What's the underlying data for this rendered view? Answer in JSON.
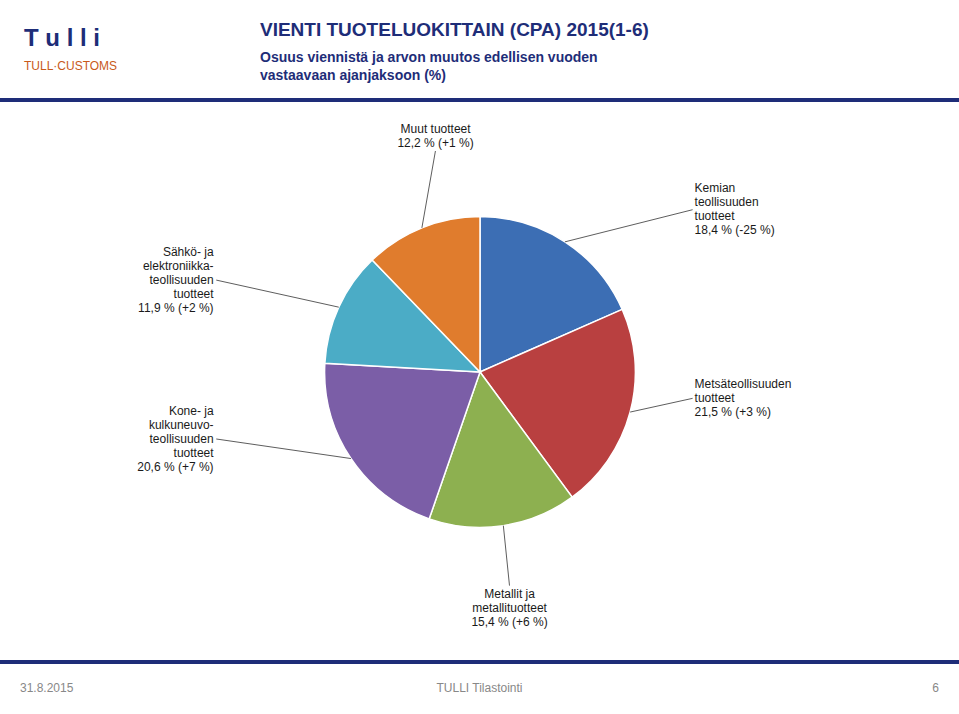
{
  "chart_data": {
    "type": "pie",
    "title": "VIENTI TUOTELUOKITTAIN (CPA) 2015(1-6)",
    "subtitle": "Osuus viennistä ja arvon muutos edellisen vuoden\nvastaavaan ajanjaksoon (%)",
    "categories": [
      "Kemian\nteollisuuden\ntuotteet\n18,4 % (-25 %)",
      "Metsäteollisuuden\ntuotteet\n21,5 % (+3 %)",
      "Metallit ja\nmetallituotteet\n15,4 % (+6 %)",
      "Kone- ja\nkulkuneuvo-\nteollisuuden\ntuotteet\n20,6 % (+7 %)",
      "Sähkö- ja\nelektroniikka-\nteollisuuden\ntuotteet\n11,9 % (+2 %)",
      "Muut tuotteet\n12,2 % (+1 %)"
    ],
    "values": [
      18.4,
      21.5,
      15.4,
      20.6,
      11.9,
      12.2
    ],
    "colors": [
      "#3C6EB4",
      "#B94040",
      "#8DB050",
      "#7B5EA7",
      "#4BACC6",
      "#E07C2D"
    ],
    "annotations": [
      "T u l l i",
      "TULL·CUSTOMS",
      "31.8.2015",
      "TULLI Tilastointi",
      "6"
    ]
  }
}
